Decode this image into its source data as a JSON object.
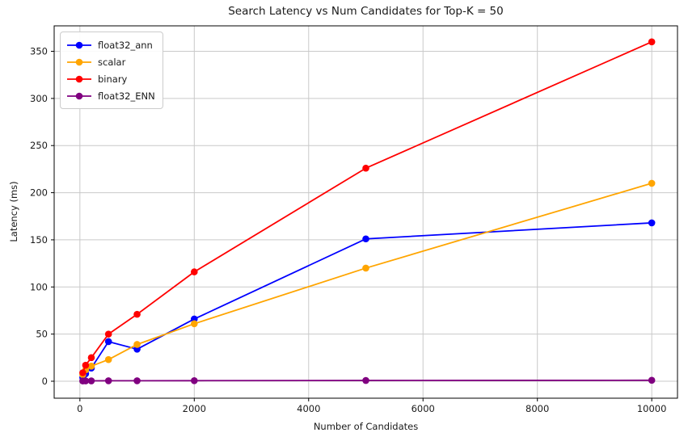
{
  "chart_data": {
    "type": "line",
    "title": "Search Latency vs Num Candidates for Top-K = 50",
    "xlabel": "Number of Candidates",
    "ylabel": "Latency (ms)",
    "x": [
      50,
      100,
      200,
      500,
      1000,
      2000,
      5000,
      10000
    ],
    "series": [
      {
        "name": "float32_ann",
        "color": "#0000ff",
        "values": [
          4,
          8,
          14,
          42,
          34,
          66,
          151,
          168
        ]
      },
      {
        "name": "scalar",
        "color": "#ffa500",
        "values": [
          7,
          12,
          16,
          23,
          39,
          61,
          120,
          210
        ]
      },
      {
        "name": "binary",
        "color": "#ff0000",
        "values": [
          9,
          17,
          25,
          50,
          71,
          116,
          226,
          360
        ]
      },
      {
        "name": "float32_ENN",
        "color": "#800080",
        "values": [
          0.3,
          0.4,
          0.4,
          0.5,
          0.5,
          0.6,
          0.8,
          1.0
        ]
      }
    ],
    "x_ticks": [
      0,
      2000,
      4000,
      6000,
      8000,
      10000
    ],
    "y_ticks": [
      0,
      50,
      100,
      150,
      200,
      250,
      300,
      350
    ],
    "xlim": [
      -450,
      10450
    ],
    "ylim": [
      -18,
      377
    ],
    "grid": true,
    "legend_position": "upper left",
    "grid_color": "#c9c9c9",
    "axis_color": "#000000",
    "text_color": "#1a1a1a"
  }
}
